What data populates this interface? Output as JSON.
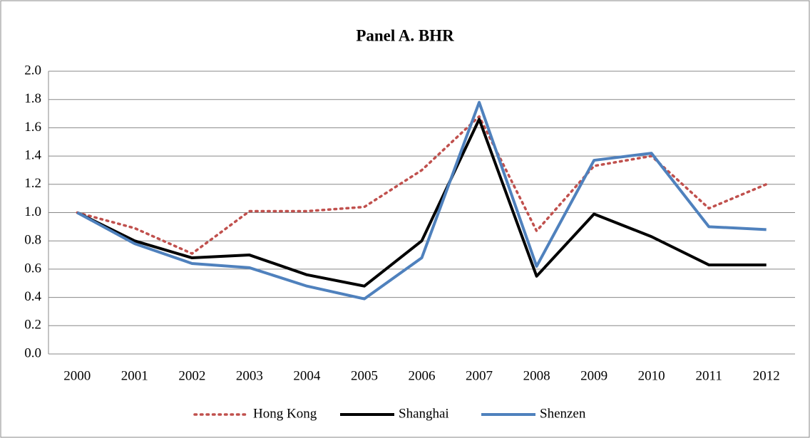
{
  "chart_data": {
    "type": "line",
    "title": "Panel A. BHR",
    "categories": [
      "2000",
      "2001",
      "2002",
      "2003",
      "2004",
      "2005",
      "2006",
      "2007",
      "2008",
      "2009",
      "2010",
      "2011",
      "2012"
    ],
    "series": [
      {
        "name": "Hong Kong",
        "color": "#c0504d",
        "dash": "dotted",
        "values": [
          1.0,
          0.89,
          0.71,
          1.01,
          1.01,
          1.04,
          1.3,
          1.68,
          0.87,
          1.33,
          1.4,
          1.03,
          1.2
        ]
      },
      {
        "name": "Shanghai",
        "color": "#000000",
        "dash": "solid",
        "values": [
          1.0,
          0.8,
          0.68,
          0.7,
          0.56,
          0.48,
          0.8,
          1.66,
          0.55,
          0.99,
          0.83,
          0.63,
          0.63
        ]
      },
      {
        "name": "Shenzen",
        "color": "#4f81bd",
        "dash": "solid",
        "values": [
          1.0,
          0.78,
          0.64,
          0.61,
          0.48,
          0.39,
          0.68,
          1.78,
          0.62,
          1.37,
          1.42,
          0.9,
          0.88
        ]
      }
    ],
    "ylim": [
      0,
      2
    ],
    "yticks": [
      {
        "value": 0,
        "label": "0.0"
      },
      0.2,
      0.4,
      0.6,
      0.8,
      {
        "value": 1,
        "label": "1.0"
      },
      1.2,
      1.4,
      1.6,
      1.8,
      {
        "value": 2,
        "label": "2.0"
      }
    ],
    "grid": true,
    "legend": "bottom"
  }
}
